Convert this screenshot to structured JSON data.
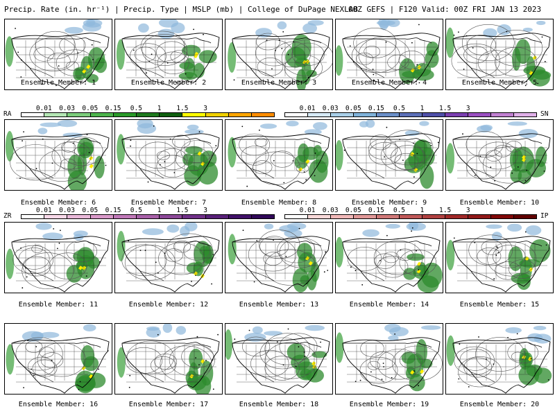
{
  "header": {
    "product": "Precip. Rate (in. hr⁻¹) | Precip. Type | MSLP (mb) | College of DuPage NEXLAB",
    "run": "00Z GEFS | F120 Valid: 00Z FRI JAN 13 2023"
  },
  "member_prefix": "Ensemble Member:",
  "members": [
    {
      "label": "Ensemble Member: 1"
    },
    {
      "label": "Ensemble Member: 2"
    },
    {
      "label": "Ensemble Member: 3"
    },
    {
      "label": "Ensemble Member: 4"
    },
    {
      "label": "Ensemble Member: 5"
    },
    {
      "label": "Ensemble Member: 6"
    },
    {
      "label": "Ensemble Member: 7"
    },
    {
      "label": "Ensemble Member: 8"
    },
    {
      "label": "Ensemble Member: 9"
    },
    {
      "label": "Ensemble Member: 10"
    },
    {
      "label": "Ensemble Member: 11"
    },
    {
      "label": "Ensemble Member: 12"
    },
    {
      "label": "Ensemble Member: 13"
    },
    {
      "label": "Ensemble Member: 14"
    },
    {
      "label": "Ensemble Member: 15"
    },
    {
      "label": "Ensemble Member: 16"
    },
    {
      "label": "Ensemble Member: 17"
    },
    {
      "label": "Ensemble Member: 18"
    },
    {
      "label": "Ensemble Member: 19"
    },
    {
      "label": "Ensemble Member: 20"
    }
  ],
  "scales": {
    "rain": {
      "type": "RA",
      "ticks": [
        "0.01",
        "0.03",
        "0.05",
        "0.15",
        "0.5",
        "1",
        "1.5",
        "3"
      ],
      "colors": [
        "#ffffff",
        "#b4e6b4",
        "#7ccd7c",
        "#4cb44c",
        "#2a9a2a",
        "#1e7a1e",
        "#0f5f0f",
        "#ffff00",
        "#f0d000",
        "#ffa500",
        "#ff8c00"
      ]
    },
    "snow": {
      "type": "SN",
      "ticks": [
        "0.01",
        "0.03",
        "0.05",
        "0.15",
        "0.5",
        "1",
        "1.5",
        "3"
      ],
      "colors": [
        "#ffffff",
        "#d6eaf8",
        "#a9cfe8",
        "#7fb2d9",
        "#6a8fc8",
        "#5b6fb8",
        "#4e4fa8",
        "#7b3fb0",
        "#9a4fc0",
        "#c080d0",
        "#e0b0e8"
      ]
    },
    "freezing_rain": {
      "type": "ZR",
      "ticks": [
        "0.01",
        "0.03",
        "0.05",
        "0.15",
        "0.5",
        "1",
        "1.5",
        "3"
      ],
      "colors": [
        "#ffffff",
        "#f8d8e8",
        "#e8b8d8",
        "#d898c8",
        "#c078b8",
        "#a860a8",
        "#8c4898",
        "#703088",
        "#582078",
        "#401068",
        "#300858"
      ]
    },
    "ice_pellets": {
      "type": "IP",
      "ticks": [
        "0.01",
        "0.03",
        "0.05",
        "0.15",
        "0.5",
        "1",
        "1.5",
        "3"
      ],
      "colors": [
        "#ffffff",
        "#f8d8d8",
        "#f0b8b8",
        "#e09898",
        "#d07878",
        "#c05858",
        "#b04040",
        "#a02828",
        "#901818",
        "#800808",
        "#600000"
      ]
    }
  }
}
